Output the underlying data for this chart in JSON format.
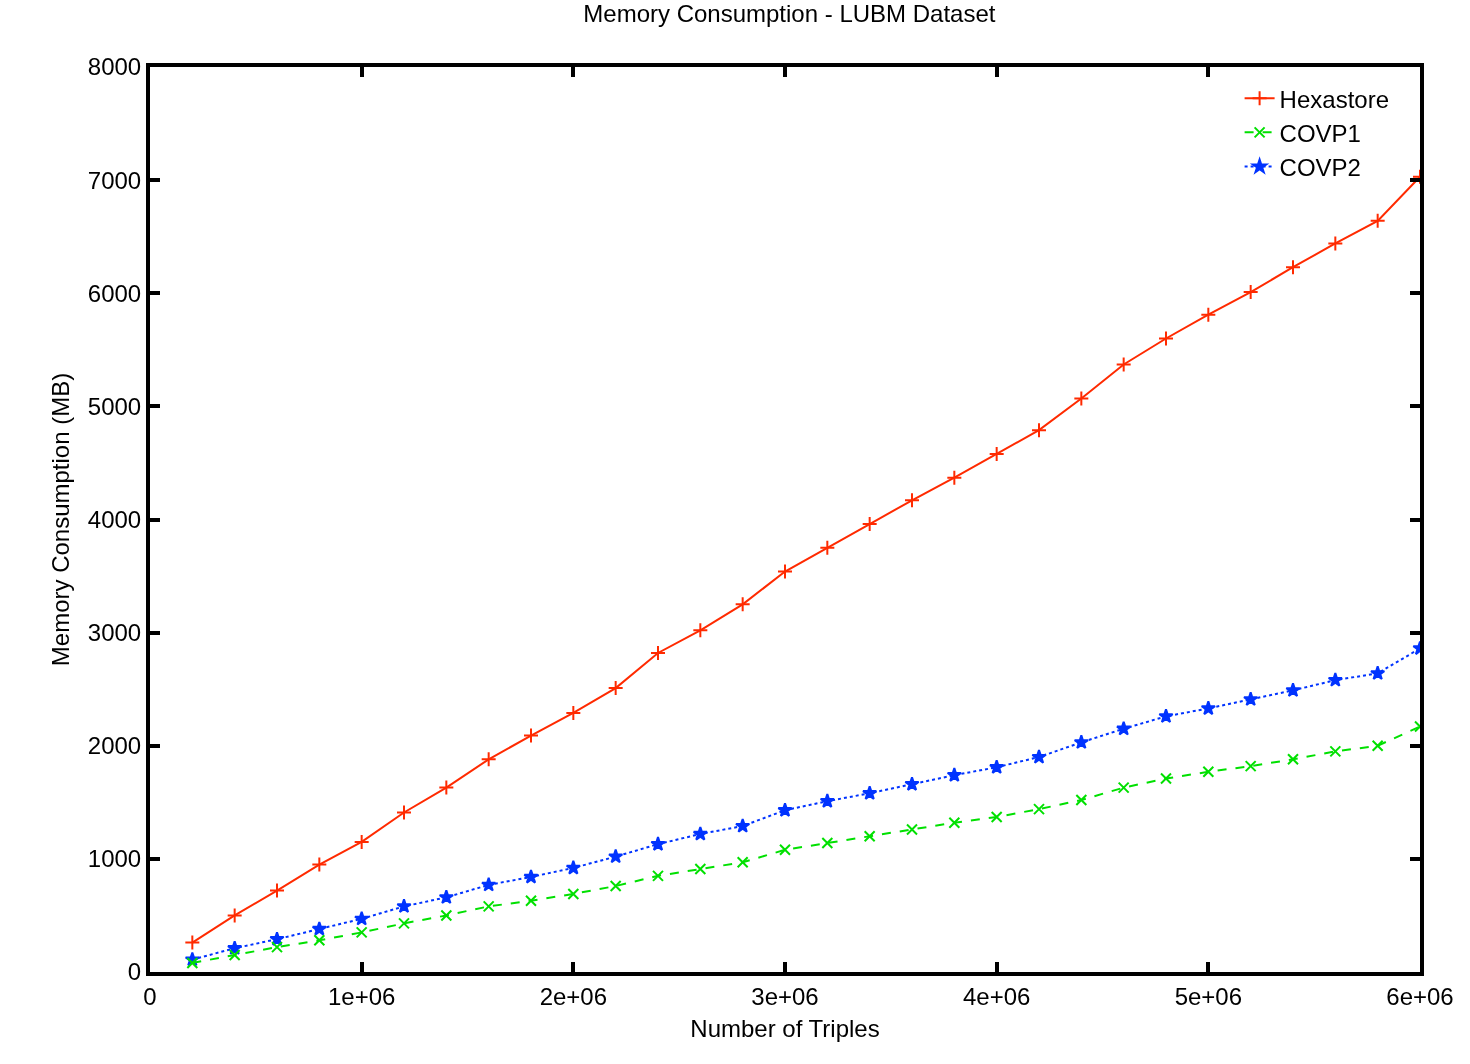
{
  "chart_data": {
    "type": "line",
    "title": "Memory Consumption - LUBM Dataset",
    "xlabel": "Number of Triples",
    "ylabel": "Memory Consumption (MB)",
    "x": [
      200000,
      400000,
      600000,
      800000,
      1000000,
      1200000,
      1400000,
      1600000,
      1800000,
      2000000,
      2200000,
      2400000,
      2600000,
      2800000,
      3000000,
      3200000,
      3400000,
      3600000,
      3800000,
      4000000,
      4200000,
      4400000,
      4600000,
      4800000,
      5000000,
      5200000,
      5400000,
      5600000,
      5800000,
      6000000
    ],
    "series": [
      {
        "name": "Hexastore",
        "color": "#ff2a00",
        "marker": "cross",
        "line_style": "solid",
        "values": [
          260,
          500,
          720,
          950,
          1150,
          1410,
          1630,
          1880,
          2090,
          2290,
          2510,
          2820,
          3020,
          3250,
          3540,
          3750,
          3960,
          4170,
          4370,
          4580,
          4790,
          5070,
          5370,
          5600,
          5810,
          6010,
          6230,
          6440,
          6640,
          7030
        ]
      },
      {
        "name": "COVP1",
        "color": "#00e000",
        "marker": "x",
        "line_style": "dashed",
        "values": [
          80,
          150,
          220,
          280,
          350,
          430,
          500,
          580,
          630,
          690,
          760,
          850,
          910,
          970,
          1080,
          1140,
          1200,
          1260,
          1320,
          1370,
          1440,
          1520,
          1630,
          1710,
          1770,
          1820,
          1880,
          1950,
          2000,
          2170
        ]
      },
      {
        "name": "COVP2",
        "color": "#0033ff",
        "marker": "star",
        "line_style": "dotted",
        "values": [
          110,
          210,
          290,
          380,
          470,
          580,
          660,
          770,
          840,
          920,
          1020,
          1130,
          1220,
          1290,
          1430,
          1510,
          1580,
          1660,
          1740,
          1810,
          1900,
          2030,
          2150,
          2260,
          2330,
          2410,
          2490,
          2580,
          2640,
          2860
        ]
      }
    ],
    "xlim": [
      0,
      6000000
    ],
    "xticks": [
      0,
      {
        "value": 1000000,
        "label": "1e+06"
      },
      {
        "value": 2000000,
        "label": "2e+06"
      },
      {
        "value": 3000000,
        "label": "3e+06"
      },
      {
        "value": 4000000,
        "label": "4e+06"
      },
      {
        "value": 5000000,
        "label": "5e+06"
      },
      {
        "value": 6000000,
        "label": "6e+06"
      }
    ],
    "ylim": [
      0,
      8000
    ],
    "yticks": [
      0,
      1000,
      2000,
      3000,
      4000,
      5000,
      6000,
      7000,
      8000
    ],
    "legend": "top right"
  }
}
